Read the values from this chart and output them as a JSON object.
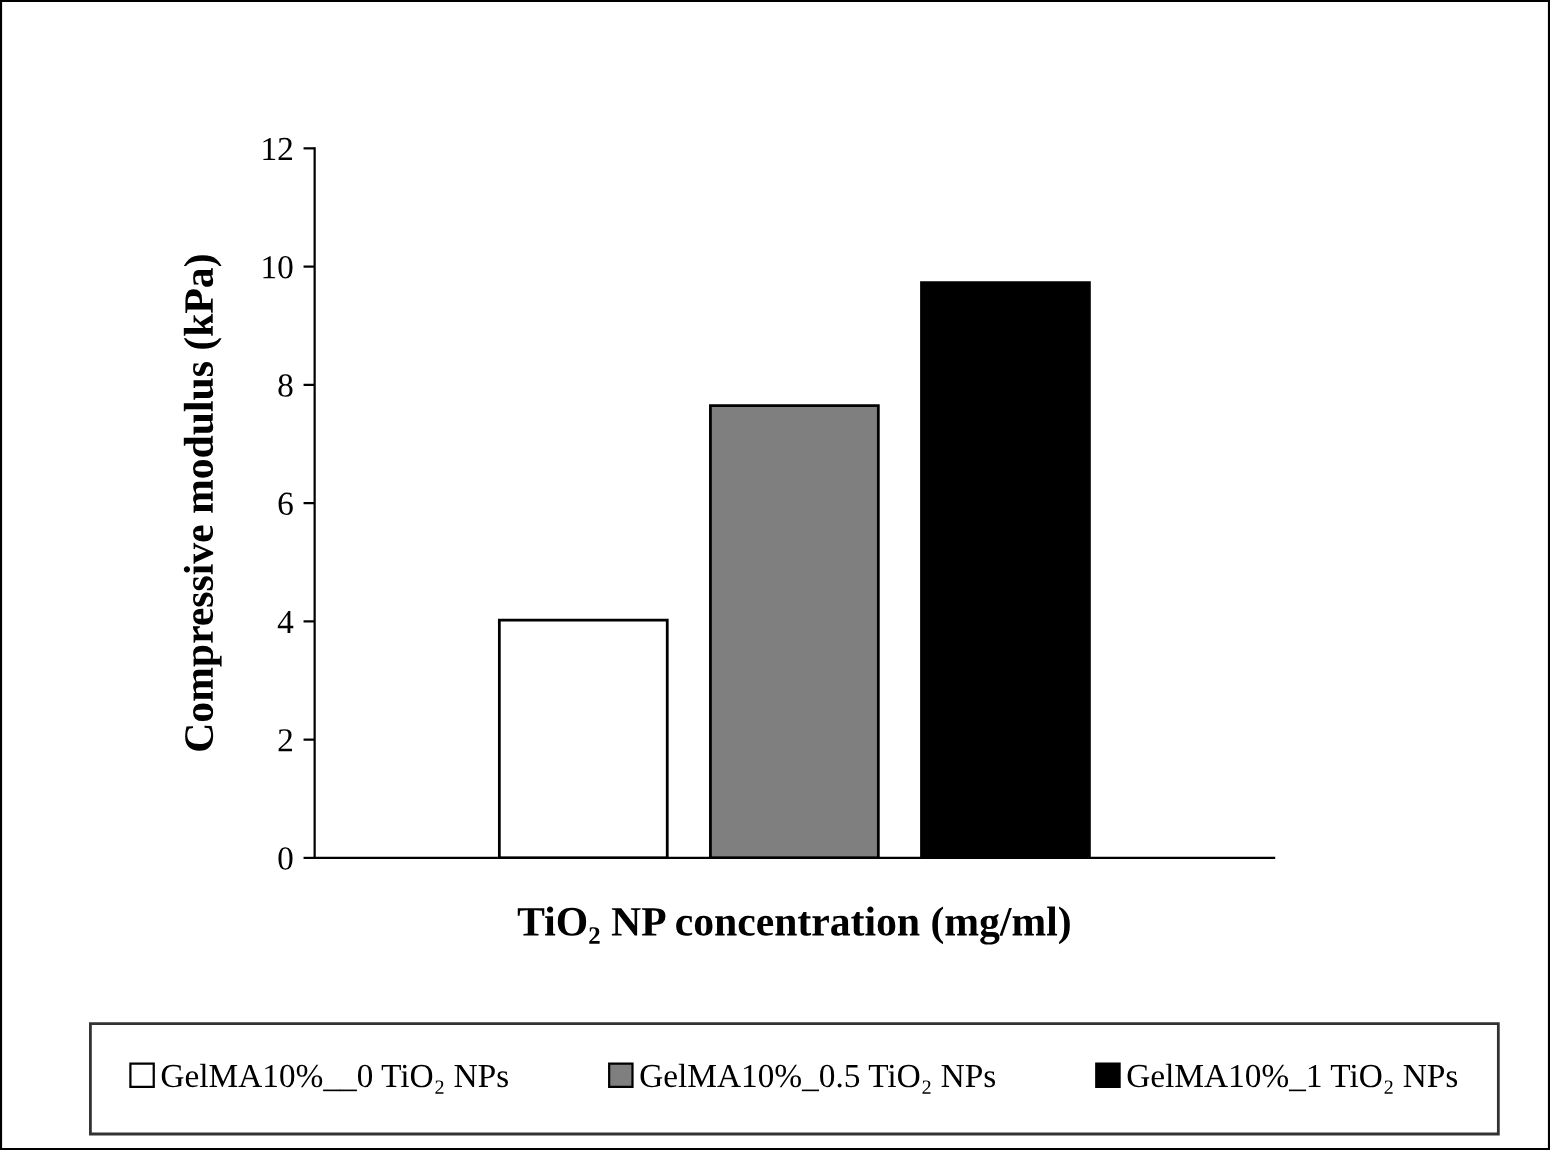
{
  "chart_data": {
    "type": "bar",
    "xlabel": "TiO₂ NP concentration (mg/ml)",
    "ylabel": "Compressive modulus (kPa)",
    "categories": [
      null
    ],
    "series": [
      {
        "name": "GelMA10%__0 TiO₂ NPs",
        "color": "#ffffff",
        "values": [
          4.02
        ]
      },
      {
        "name": "GelMA10%_0.5 TiO₂ NPs",
        "color": "#7f7f7f",
        "values": [
          7.65
        ]
      },
      {
        "name": "GelMA10%_1 TiO₂ NPs",
        "color": "#000000",
        "values": [
          9.73
        ]
      }
    ],
    "ylim": [
      0,
      12
    ],
    "yticks": [
      0,
      2,
      4,
      6,
      8,
      10,
      12
    ],
    "grid": false,
    "legend": "bottom"
  }
}
